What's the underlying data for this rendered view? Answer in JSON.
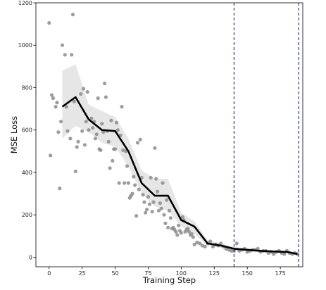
{
  "chart_data": {
    "type": "scatter",
    "title": "",
    "xlabel": "Training Step",
    "ylabel": "MSE Loss",
    "xlim": [
      -10,
      192
    ],
    "ylim": [
      -45,
      1200
    ],
    "xticks": [
      0,
      25,
      50,
      75,
      100,
      125,
      150,
      175
    ],
    "xtick_labels": [
      "0",
      "25",
      "50",
      "75",
      "100",
      "125",
      "150",
      "175"
    ],
    "yticks": [
      0,
      200,
      400,
      600,
      800,
      1000,
      1200
    ],
    "ytick_labels": [
      "0",
      "200",
      "400",
      "600",
      "800",
      "1000",
      "1200"
    ],
    "grid": false,
    "legend": "none",
    "colors": {
      "points": "#8c8c8c",
      "line": "#000000",
      "band": "#d9d9d9",
      "vlines": "#1f1f7a"
    },
    "vlines": [
      140,
      189
    ],
    "series": [
      {
        "kind": "scatter",
        "x": [
          0,
          1,
          2,
          3,
          5,
          6,
          7,
          8,
          9,
          10,
          12,
          13,
          14,
          16,
          17,
          18,
          19,
          20,
          21,
          22,
          24,
          25,
          26,
          27,
          28,
          29,
          30,
          32,
          33,
          34,
          35,
          36,
          37,
          38,
          39,
          40,
          41,
          42,
          43,
          44,
          45,
          46,
          47,
          48,
          49,
          50,
          51,
          52,
          53,
          54,
          55,
          56,
          57,
          58,
          59,
          60,
          61,
          62,
          63,
          64,
          65,
          66,
          67,
          68,
          69,
          70,
          71,
          72,
          73,
          74,
          75,
          76,
          77,
          78,
          79,
          80,
          81,
          82,
          83,
          84,
          85,
          86,
          87,
          88,
          89,
          90,
          91,
          92,
          93,
          94,
          95,
          96,
          97,
          98,
          99,
          100,
          101,
          102,
          103,
          104,
          105,
          106,
          107,
          108,
          109,
          110,
          112,
          114,
          116,
          118,
          120,
          122,
          124,
          126,
          128,
          130,
          132,
          134,
          136,
          138,
          140,
          142,
          144,
          146,
          148,
          150,
          152,
          154,
          156,
          158,
          160,
          162,
          164,
          166,
          168,
          170,
          172,
          174,
          176,
          178,
          180,
          182,
          184,
          186,
          188
        ],
        "y": [
          1105,
          480,
          765,
          750,
          710,
          730,
          590,
          325,
          640,
          1000,
          955,
          710,
          595,
          560,
          955,
          1145,
          735,
          405,
          520,
          545,
          770,
          595,
          795,
          530,
          640,
          780,
          600,
          655,
          610,
          640,
          560,
          580,
          750,
          510,
          505,
          630,
          590,
          820,
          755,
          595,
          545,
          420,
          645,
          455,
          510,
          510,
          635,
          600,
          350,
          575,
          710,
          505,
          350,
          500,
          430,
          350,
          280,
          290,
          300,
          380,
          340,
          195,
          540,
          320,
          555,
          375,
          295,
          260,
          210,
          225,
          285,
          250,
          375,
          215,
          260,
          515,
          370,
          310,
          220,
          255,
          230,
          350,
          200,
          160,
          270,
          140,
          220,
          185,
          135,
          140,
          130,
          120,
          105,
          150,
          125,
          115,
          190,
          175,
          120,
          130,
          135,
          120,
          105,
          110,
          95,
          60,
          70,
          65,
          55,
          50,
          65,
          75,
          50,
          60,
          55,
          65,
          50,
          40,
          35,
          30,
          30,
          65,
          30,
          35,
          40,
          25,
          30,
          35,
          35,
          40,
          25,
          30,
          30,
          20,
          25,
          15,
          25,
          30,
          20,
          15,
          30,
          20,
          15,
          20,
          15
        ]
      },
      {
        "kind": "line",
        "x": [
          10,
          20,
          30,
          40,
          50,
          60,
          70,
          80,
          90,
          100,
          110,
          120,
          130,
          140,
          150,
          160,
          170,
          180,
          188
        ],
        "y": [
          710,
          755,
          650,
          600,
          595,
          500,
          350,
          290,
          290,
          175,
          145,
          65,
          55,
          40,
          35,
          30,
          27,
          25,
          15
        ]
      },
      {
        "kind": "band",
        "x": [
          10,
          20,
          30,
          40,
          50,
          60,
          70,
          80,
          90,
          100,
          110,
          120,
          130,
          140,
          150,
          160,
          170,
          180,
          188
        ],
        "lower": [
          560,
          620,
          590,
          540,
          520,
          430,
          300,
          240,
          220,
          145,
          110,
          55,
          45,
          32,
          28,
          25,
          22,
          20,
          12
        ],
        "upper": [
          880,
          910,
          720,
          690,
          660,
          560,
          410,
          370,
          370,
          210,
          170,
          80,
          65,
          48,
          42,
          36,
          32,
          30,
          20
        ]
      }
    ]
  }
}
